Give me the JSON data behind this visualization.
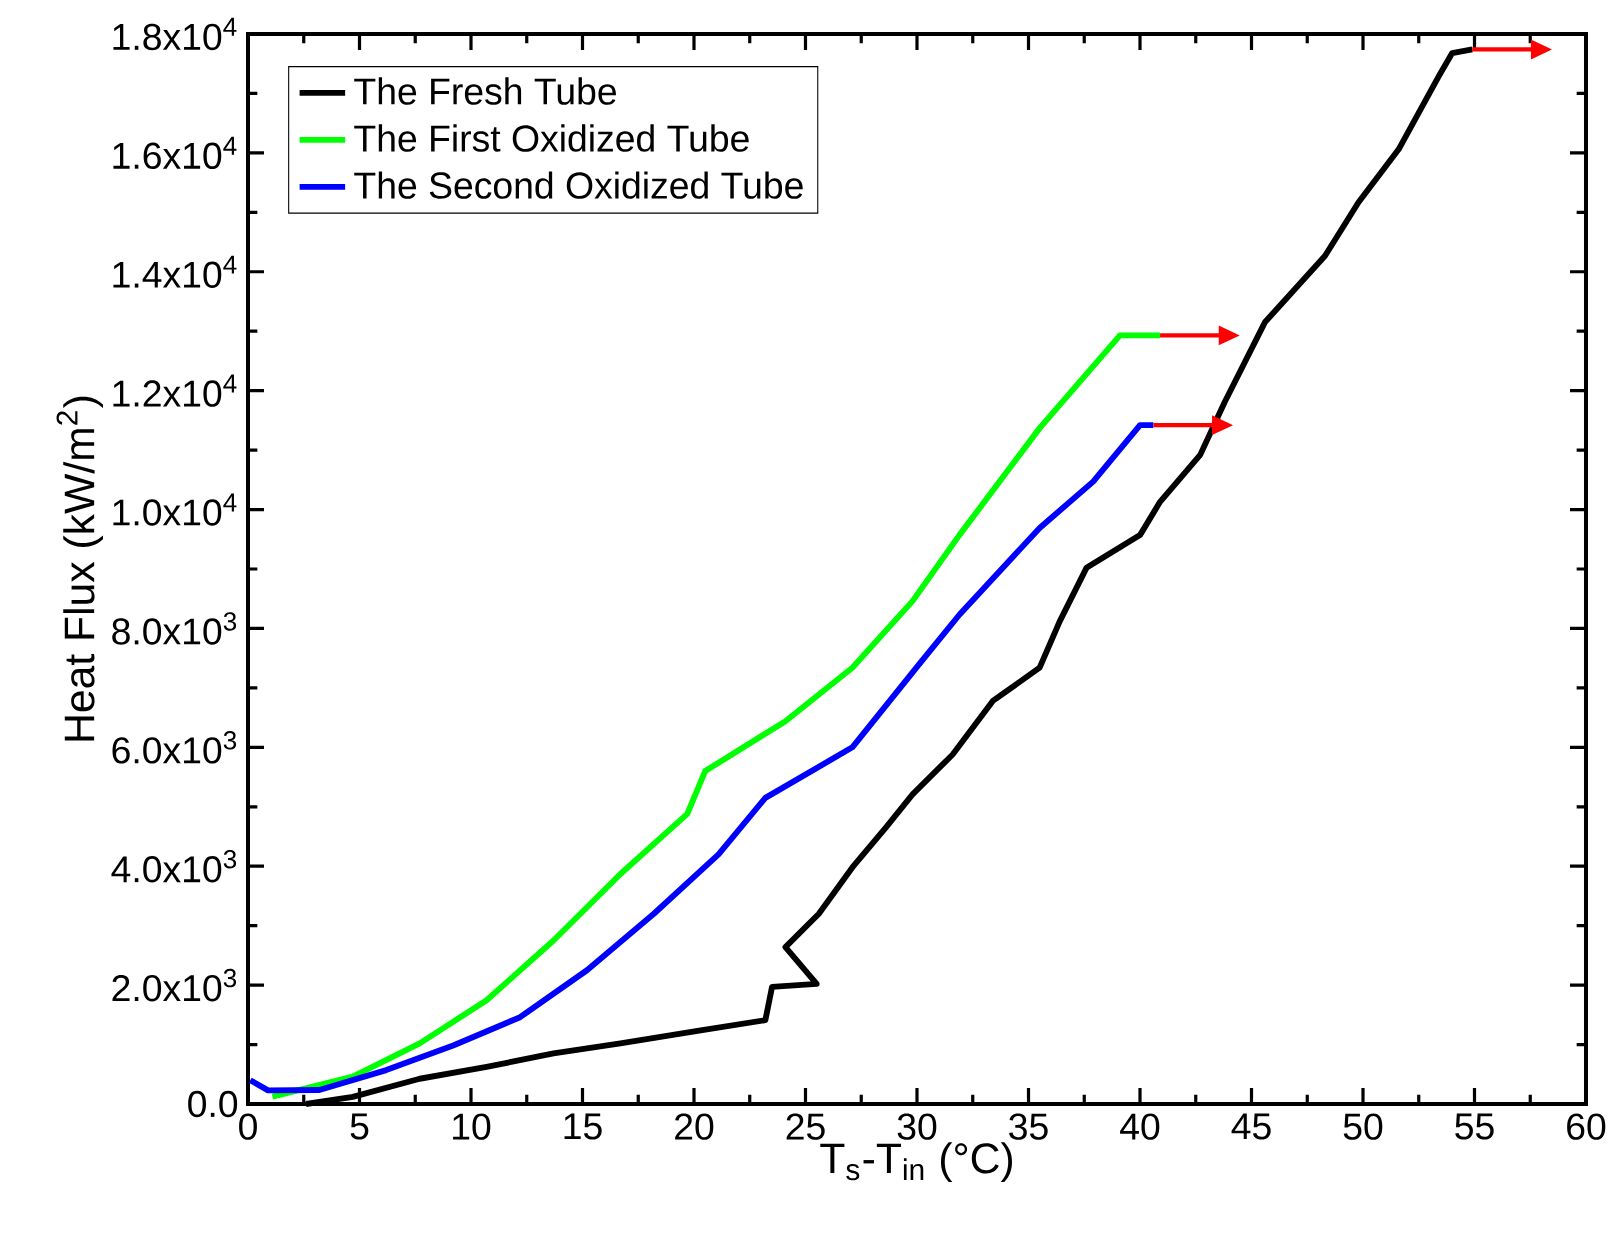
{
  "chart_data": {
    "type": "line",
    "xlabel": "T$_{s}$-T$_{in}$ (°C)",
    "ylabel": "Heat Flux (kW/m$^{2}$)",
    "xlim": [
      0,
      60
    ],
    "xticks": [
      0,
      5,
      10,
      15,
      20,
      25,
      30,
      35,
      40,
      45,
      50,
      55,
      60
    ],
    "ylim": [
      0,
      18000
    ],
    "yticks": [
      {
        "value": 0,
        "label": "0.0"
      },
      {
        "value": 2000,
        "label": "2.0x10$^{3}$"
      },
      {
        "value": 4000,
        "label": "4.0x10$^{3}$"
      },
      {
        "value": 6000,
        "label": "6.0x10$^{3}$"
      },
      {
        "value": 8000,
        "label": "8.0x10$^{3}$"
      },
      {
        "value": 10000,
        "label": "1.0x10$^{4}$"
      },
      {
        "value": 12000,
        "label": "1.2x10$^{4}$"
      },
      {
        "value": 14000,
        "label": "1.4x10$^{4}$"
      },
      {
        "value": 16000,
        "label": "1.6x10$^{4}$"
      },
      {
        "value": 18000,
        "label": "1.8x10$^{4}$"
      }
    ],
    "legend": "top left",
    "grid": false,
    "marker": "none",
    "line_style": "solid",
    "series": [
      {
        "name": "The Fresh Tube",
        "color": "#000000",
        "x": [
          2.6,
          4.7,
          7.7,
          10.7,
          13.7,
          16.7,
          20.3,
          23.2,
          23.5,
          25.5,
          24.1,
          25.6,
          27.1,
          28.6,
          29.8,
          31.6,
          33.4,
          35.5,
          36.4,
          37.6,
          40.0,
          40.9,
          42.7,
          43.8,
          45.6,
          48.3,
          49.8,
          51.6,
          53.4,
          54.0,
          54.9
        ],
        "values": [
          0,
          120,
          425,
          625,
          850,
          1020,
          1240,
          1410,
          1970,
          2020,
          2640,
          3200,
          3980,
          4650,
          5210,
          5880,
          6780,
          7340,
          8120,
          9020,
          9570,
          10130,
          10920,
          11810,
          13150,
          14270,
          15170,
          16060,
          17290,
          17680,
          17740
        ]
      },
      {
        "name": "The First Oxidized Tube",
        "color": "#00ff00",
        "x": [
          1.1,
          4.7,
          7.7,
          10.7,
          13.7,
          16.7,
          19.7,
          20.5,
          24.1,
          27.1,
          29.8,
          31.9,
          35.5,
          39.1,
          40.9
        ],
        "values": [
          125,
          460,
          1020,
          1745,
          2750,
          3870,
          4880,
          5600,
          6440,
          7340,
          8460,
          9570,
          11370,
          12930,
          12930
        ]
      },
      {
        "name": "The Second Oxidized Tube",
        "color": "#0000ff",
        "x": [
          0.1,
          0.9,
          3.2,
          6.2,
          9.2,
          12.2,
          15.2,
          18.2,
          21.1,
          23.2,
          27.1,
          30.1,
          31.9,
          35.5,
          37.9,
          40.0,
          40.6
        ],
        "values": [
          400,
          230,
          235,
          570,
          985,
          1460,
          2250,
          3200,
          4200,
          5150,
          6000,
          7400,
          8230,
          9690,
          10470,
          11420,
          11420
        ]
      }
    ]
  }
}
